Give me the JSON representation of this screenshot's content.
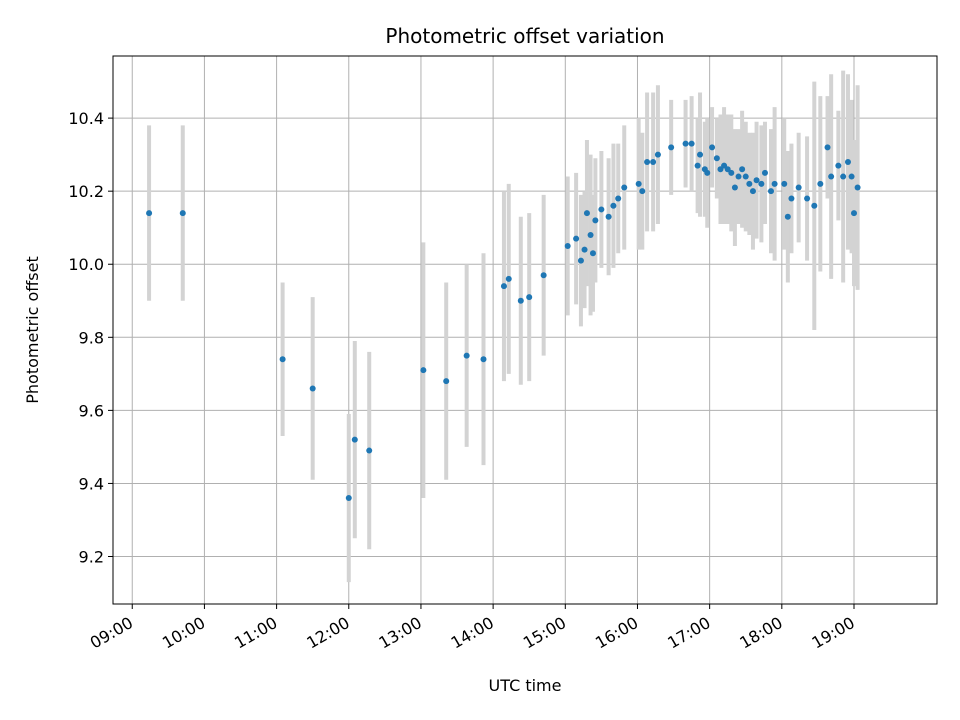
{
  "chart_data": {
    "type": "scatter",
    "title": "Photometric offset variation",
    "xlabel": "UTC time",
    "ylabel": "Photometric offset",
    "x_ticks": [
      "09:00",
      "10:00",
      "11:00",
      "12:00",
      "13:00",
      "14:00",
      "15:00",
      "16:00",
      "17:00",
      "18:00",
      "19:00"
    ],
    "y_ticks": [
      "9.2",
      "9.4",
      "9.6",
      "9.8",
      "10.0",
      "10.2",
      "10.4"
    ],
    "xlim": [
      "08:44",
      "20:09"
    ],
    "ylim": [
      9.07,
      10.57
    ],
    "grid": true,
    "colors": {
      "point": "#1f77b4",
      "errorbar": "#d3d3d3",
      "grid": "#b0b0b0"
    },
    "series": [
      {
        "x": [
          "09:14",
          "09:42",
          "11:05",
          "11:30",
          "12:00",
          "12:05",
          "12:17",
          "13:02",
          "13:21",
          "13:38",
          "13:52",
          "14:09",
          "14:13",
          "14:23",
          "14:30",
          "14:42",
          "15:02",
          "15:09",
          "15:13",
          "15:16",
          "15:18",
          "15:21",
          "15:23",
          "15:25",
          "15:30",
          "15:36",
          "15:40",
          "15:44",
          "15:49",
          "16:01",
          "16:04",
          "16:08",
          "16:13",
          "16:17",
          "16:28",
          "16:40",
          "16:45",
          "16:50",
          "16:52",
          "16:56",
          "16:58",
          "17:02",
          "17:06",
          "17:09",
          "17:12",
          "17:15",
          "17:18",
          "17:21",
          "17:24",
          "17:27",
          "17:30",
          "17:33",
          "17:36",
          "17:39",
          "17:43",
          "17:46",
          "17:51",
          "17:54",
          "18:02",
          "18:05",
          "18:08",
          "18:14",
          "18:21",
          "18:27",
          "18:32",
          "18:38",
          "18:41",
          "18:47",
          "18:51",
          "18:55",
          "18:58",
          "19:00",
          "19:03"
        ],
        "y": [
          10.14,
          10.14,
          9.74,
          9.66,
          9.36,
          9.52,
          9.49,
          9.71,
          9.68,
          9.75,
          9.74,
          9.94,
          9.96,
          9.9,
          9.91,
          9.97,
          10.05,
          10.07,
          10.01,
          10.04,
          10.14,
          10.08,
          10.03,
          10.12,
          10.15,
          10.13,
          10.16,
          10.18,
          10.21,
          10.22,
          10.2,
          10.28,
          10.28,
          10.3,
          10.32,
          10.33,
          10.33,
          10.27,
          10.3,
          10.26,
          10.25,
          10.32,
          10.29,
          10.26,
          10.27,
          10.26,
          10.25,
          10.21,
          10.24,
          10.26,
          10.24,
          10.22,
          10.2,
          10.23,
          10.22,
          10.25,
          10.2,
          10.22,
          10.22,
          10.13,
          10.18,
          10.21,
          10.18,
          10.16,
          10.22,
          10.32,
          10.24,
          10.27,
          10.24,
          10.28,
          10.24,
          10.14,
          10.21
        ],
        "yerr": [
          0.24,
          0.24,
          0.21,
          0.25,
          0.23,
          0.27,
          0.27,
          0.35,
          0.27,
          0.25,
          0.29,
          0.26,
          0.26,
          0.23,
          0.23,
          0.22,
          0.19,
          0.18,
          0.18,
          0.16,
          0.2,
          0.22,
          0.16,
          0.17,
          0.16,
          0.16,
          0.17,
          0.15,
          0.17,
          0.18,
          0.16,
          0.19,
          0.19,
          0.19,
          0.13,
          0.12,
          0.13,
          0.13,
          0.17,
          0.13,
          0.15,
          0.11,
          0.11,
          0.15,
          0.16,
          0.15,
          0.16,
          0.16,
          0.13,
          0.16,
          0.15,
          0.14,
          0.16,
          0.16,
          0.16,
          0.14,
          0.17,
          0.21,
          0.18,
          0.18,
          0.15,
          0.15,
          0.17,
          0.34,
          0.24,
          0.14,
          0.28,
          0.15,
          0.29,
          0.24,
          0.21,
          0.2,
          0.28
        ]
      }
    ]
  }
}
